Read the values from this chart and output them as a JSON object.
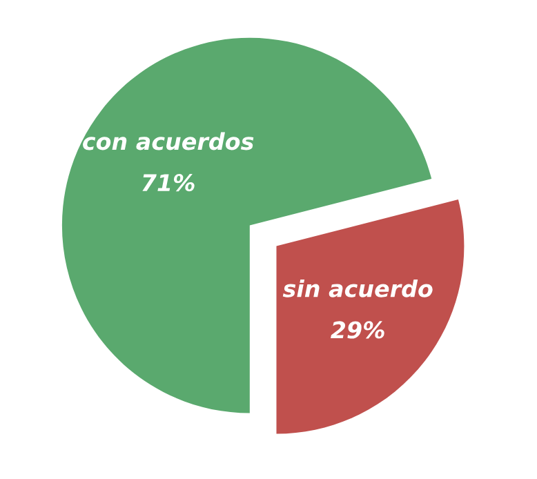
{
  "chart_data": {
    "type": "pie",
    "categories": [
      "con acuerdos",
      "sin acuerdo"
    ],
    "values": [
      71,
      29
    ],
    "value_labels": [
      "71%",
      "29%"
    ],
    "colors": [
      "#5aa96e",
      "#c0504d"
    ],
    "legend": false
  }
}
